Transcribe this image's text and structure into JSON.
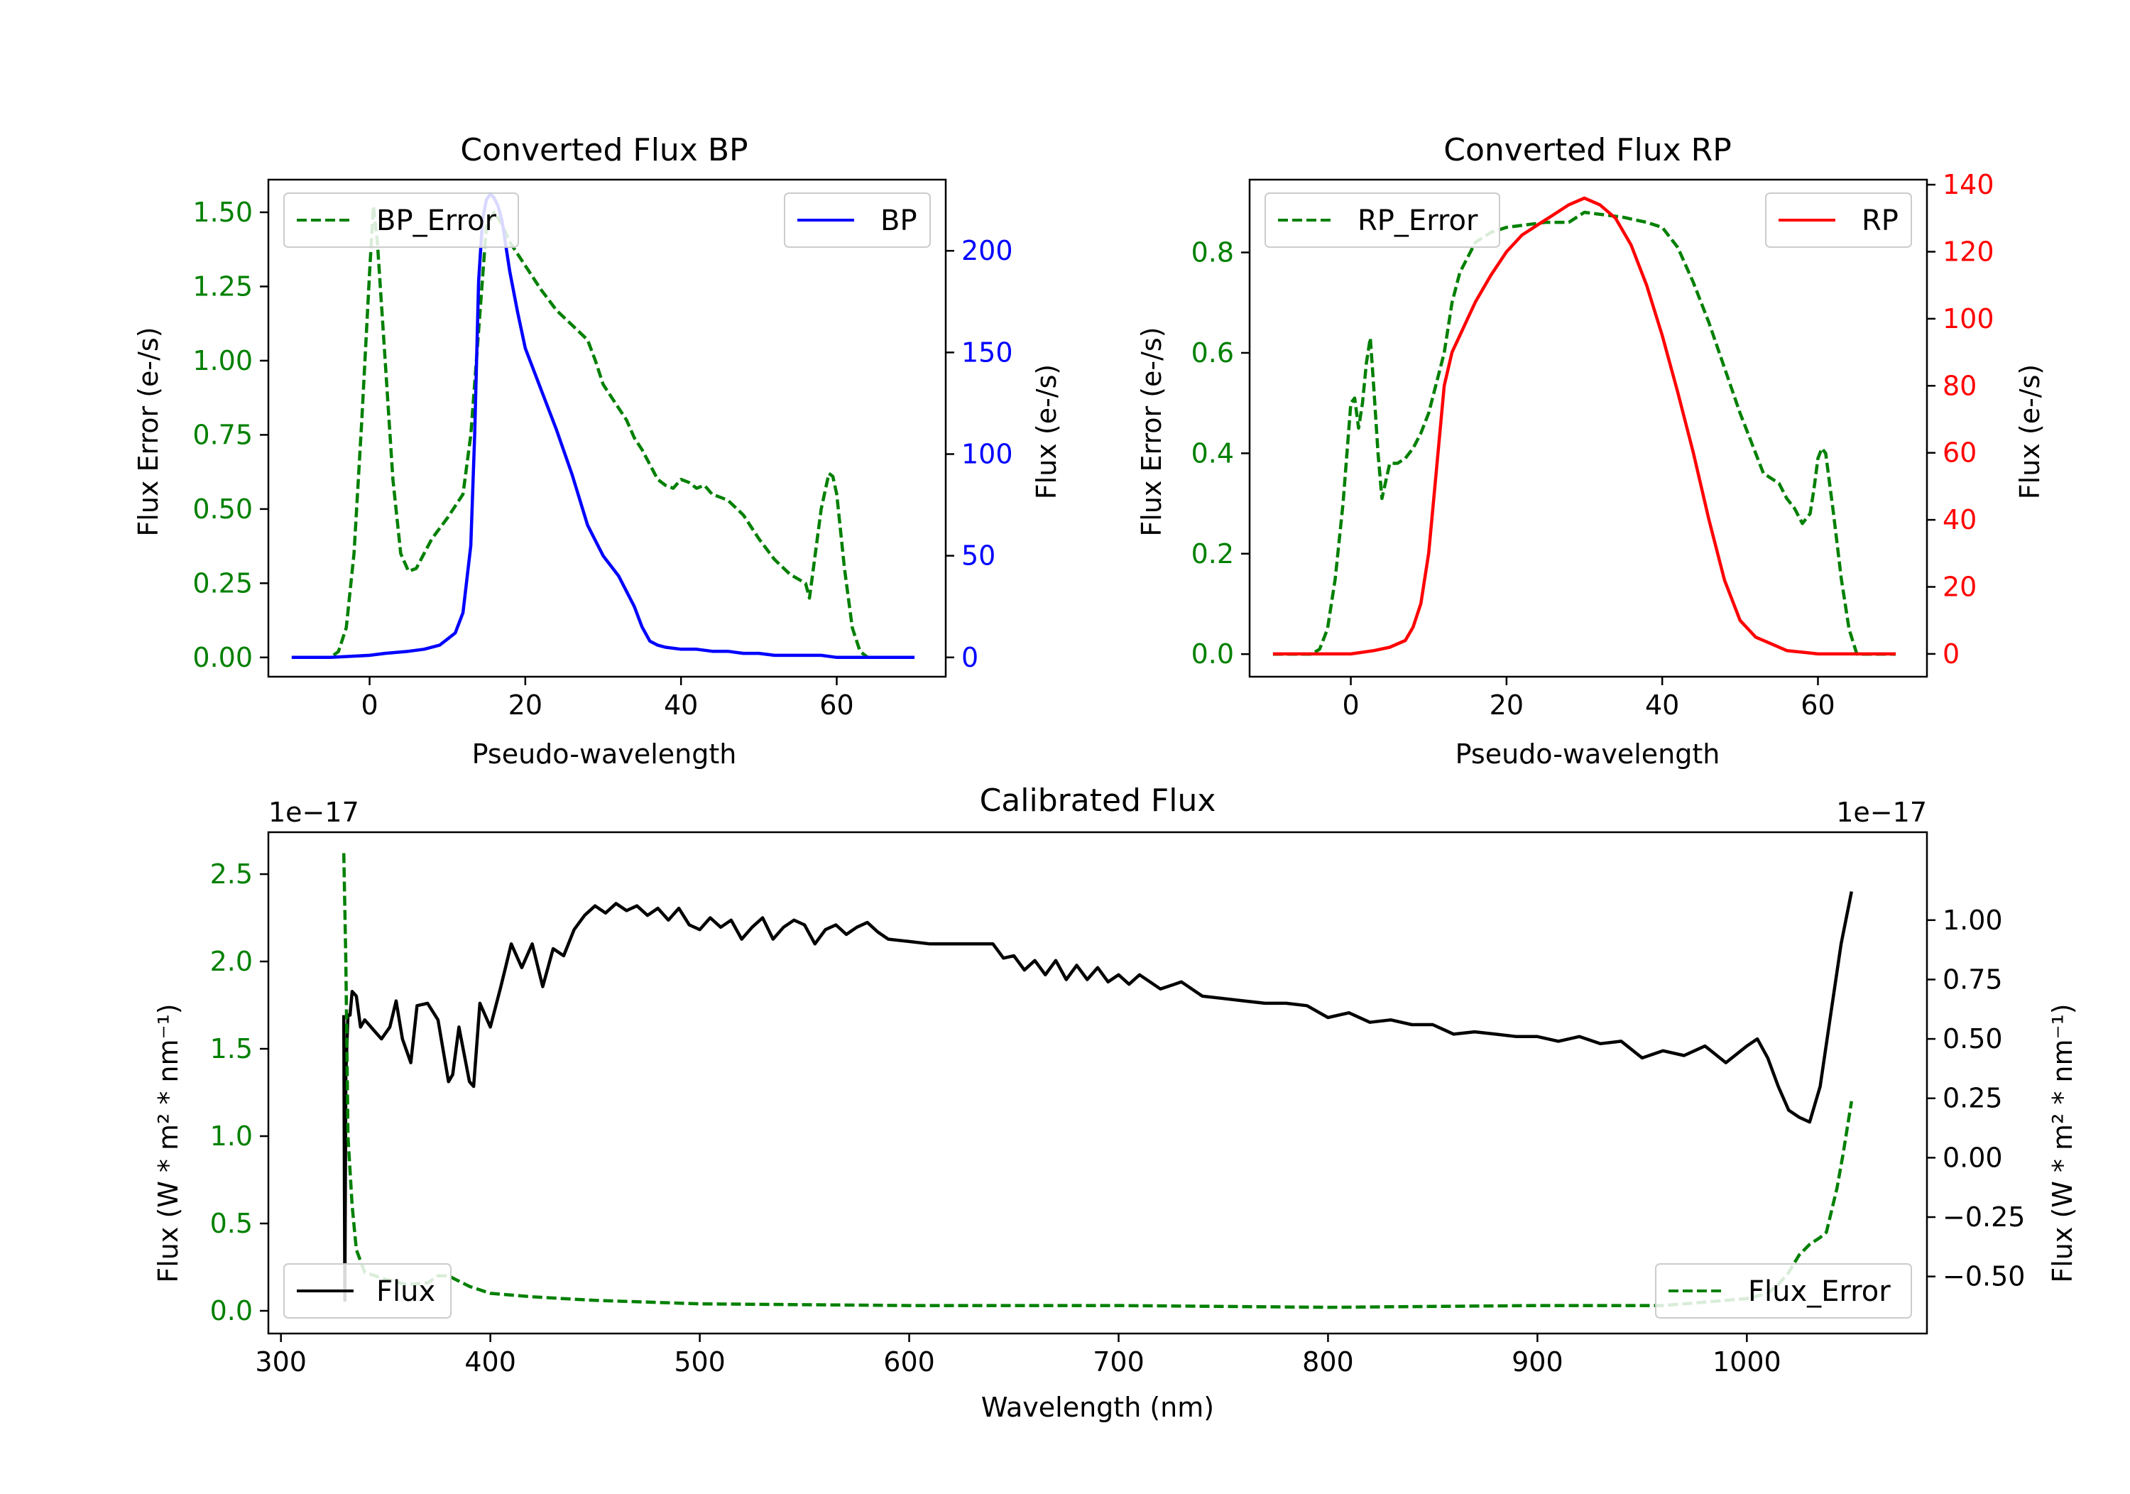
{
  "figure": {
    "background": "#ffffff"
  },
  "chart_data": [
    {
      "type": "line",
      "title": "Converted Flux BP",
      "xlabel": "Pseudo-wavelength",
      "xlim": [
        -13,
        74
      ],
      "x_ticks": [
        0,
        20,
        40,
        60
      ],
      "left_axis": {
        "label": "Flux Error (e-/s)",
        "color": "#008000",
        "ylim": [
          -0.065,
          1.61
        ],
        "ticks": [
          0.0,
          0.25,
          0.5,
          0.75,
          1.0,
          1.25,
          1.5
        ],
        "tick_labels": [
          "0.00",
          "0.25",
          "0.50",
          "0.75",
          "1.00",
          "1.25",
          "1.50"
        ]
      },
      "right_axis": {
        "label": "Flux (e-/s)",
        "color": "#0000ff",
        "ylim": [
          -9.5,
          235
        ],
        "ticks": [
          0,
          50,
          100,
          150,
          200
        ],
        "tick_labels": [
          "0",
          "50",
          "100",
          "150",
          "200"
        ]
      },
      "series": [
        {
          "name": "BP_Error",
          "axis": "left",
          "color": "#008000",
          "style": "dashed",
          "x": [
            -10,
            -5,
            -4,
            -3,
            -2,
            -1,
            0,
            0.5,
            1,
            2,
            3,
            4,
            5,
            6,
            7,
            8,
            10,
            12,
            13,
            14,
            15,
            16,
            17,
            18,
            20,
            22,
            24,
            26,
            28,
            29,
            30,
            32,
            33,
            34,
            35,
            36,
            37,
            38,
            39,
            40,
            41,
            42,
            43,
            44,
            46,
            48,
            50,
            52,
            54,
            56,
            56.5,
            57,
            58,
            59,
            59.5,
            60,
            61,
            62,
            63,
            64,
            65,
            66,
            70
          ],
          "values": [
            0.0,
            0.0,
            0.02,
            0.1,
            0.35,
            0.8,
            1.3,
            1.52,
            1.4,
            1.0,
            0.6,
            0.35,
            0.29,
            0.3,
            0.35,
            0.4,
            0.47,
            0.55,
            0.75,
            1.1,
            1.45,
            1.5,
            1.46,
            1.4,
            1.32,
            1.24,
            1.17,
            1.12,
            1.07,
            1.0,
            0.92,
            0.84,
            0.8,
            0.74,
            0.7,
            0.65,
            0.6,
            0.58,
            0.57,
            0.6,
            0.59,
            0.57,
            0.58,
            0.55,
            0.53,
            0.48,
            0.4,
            0.33,
            0.28,
            0.25,
            0.2,
            0.3,
            0.5,
            0.62,
            0.61,
            0.55,
            0.3,
            0.1,
            0.02,
            0.0,
            0.0,
            0.0,
            0.0
          ]
        },
        {
          "name": "BP",
          "axis": "right",
          "color": "#0000ff",
          "style": "solid",
          "x": [
            -10,
            -5,
            0,
            2,
            5,
            7,
            9,
            11,
            12,
            13,
            13.5,
            14,
            14.5,
            15,
            15.5,
            16,
            16.5,
            17,
            18,
            19,
            20,
            22,
            24,
            26,
            28,
            30,
            32,
            34,
            35,
            36,
            37,
            38,
            40,
            42,
            44,
            46,
            48,
            50,
            52,
            54,
            56,
            58,
            60,
            62,
            65,
            70
          ],
          "values": [
            0,
            0,
            1,
            2,
            3,
            4,
            6,
            12,
            22,
            55,
            110,
            185,
            215,
            225,
            228,
            226,
            222,
            215,
            190,
            170,
            152,
            132,
            112,
            90,
            65,
            50,
            40,
            25,
            15,
            8,
            6,
            5,
            4,
            4,
            3,
            3,
            2,
            2,
            1,
            1,
            1,
            1,
            0,
            0,
            0,
            0
          ]
        }
      ],
      "legend": [
        {
          "label": "BP_Error",
          "placement": "upper-left"
        },
        {
          "label": "BP",
          "placement": "upper-right"
        }
      ]
    },
    {
      "type": "line",
      "title": "Converted Flux RP",
      "xlabel": "Pseudo-wavelength",
      "xlim": [
        -13,
        74
      ],
      "x_ticks": [
        0,
        20,
        40,
        60
      ],
      "left_axis": {
        "label": "Flux Error (e-/s)",
        "color": "#008000",
        "ylim": [
          -0.045,
          0.945
        ],
        "ticks": [
          0.0,
          0.2,
          0.4,
          0.6,
          0.8
        ],
        "tick_labels": [
          "0.0",
          "0.2",
          "0.4",
          "0.6",
          "0.8"
        ]
      },
      "right_axis": {
        "label": "Flux (e-/s)",
        "color": "#ff0000",
        "ylim": [
          -6.8,
          141.5
        ],
        "ticks": [
          0,
          20,
          40,
          60,
          80,
          100,
          120,
          140
        ],
        "tick_labels": [
          "0",
          "20",
          "40",
          "60",
          "80",
          "100",
          "120",
          "140"
        ]
      },
      "series": [
        {
          "name": "RP_Error",
          "axis": "left",
          "color": "#008000",
          "style": "dashed",
          "x": [
            -10,
            -5,
            -4,
            -3,
            -2,
            -1,
            0,
            0.5,
            1,
            1.5,
            2,
            2.5,
            3,
            3.5,
            4,
            5,
            6,
            7,
            8,
            9,
            10,
            12,
            13,
            14,
            16,
            18,
            20,
            25,
            28,
            30,
            35,
            38,
            40,
            42,
            44,
            46,
            48,
            50,
            52,
            53,
            54,
            55,
            56,
            57,
            58,
            59,
            59.5,
            60,
            60.5,
            61,
            62,
            63,
            64,
            65,
            70
          ],
          "values": [
            0.0,
            0.0,
            0.01,
            0.05,
            0.15,
            0.3,
            0.5,
            0.51,
            0.45,
            0.5,
            0.58,
            0.63,
            0.52,
            0.4,
            0.31,
            0.38,
            0.38,
            0.39,
            0.41,
            0.44,
            0.48,
            0.6,
            0.7,
            0.76,
            0.82,
            0.84,
            0.85,
            0.86,
            0.86,
            0.88,
            0.87,
            0.86,
            0.85,
            0.81,
            0.74,
            0.66,
            0.57,
            0.48,
            0.4,
            0.36,
            0.35,
            0.34,
            0.31,
            0.29,
            0.26,
            0.28,
            0.33,
            0.39,
            0.41,
            0.4,
            0.28,
            0.15,
            0.05,
            0.0,
            0.0
          ]
        },
        {
          "name": "RP",
          "axis": "right",
          "color": "#ff0000",
          "style": "solid",
          "x": [
            -10,
            -5,
            0,
            3,
            5,
            7,
            8,
            9,
            10,
            11,
            12,
            13,
            14,
            15,
            16,
            18,
            20,
            22,
            24,
            26,
            28,
            30,
            32,
            34,
            36,
            38,
            40,
            42,
            44,
            46,
            48,
            50,
            52,
            54,
            56,
            58,
            60,
            62,
            65,
            70
          ],
          "values": [
            0,
            0,
            0,
            1,
            2,
            4,
            8,
            15,
            30,
            55,
            80,
            90,
            95,
            100,
            105,
            113,
            120,
            125,
            128,
            131,
            134,
            136,
            134,
            130,
            122,
            110,
            95,
            78,
            60,
            40,
            22,
            10,
            5,
            3,
            1,
            0.5,
            0,
            0,
            0,
            0
          ]
        }
      ],
      "legend": [
        {
          "label": "RP_Error",
          "placement": "upper-left"
        },
        {
          "label": "RP",
          "placement": "upper-right"
        }
      ]
    },
    {
      "type": "line",
      "title": "Calibrated Flux",
      "xlabel": "Wavelength (nm)",
      "xlim": [
        294,
        1086
      ],
      "x_ticks": [
        300,
        400,
        500,
        600,
        700,
        800,
        900,
        1000
      ],
      "left_axis": {
        "label": "Flux (W * m² * nm⁻¹)",
        "color": "#008000",
        "offset_text": "1e−17",
        "ylim": [
          -0.13,
          2.74
        ],
        "ticks": [
          0.0,
          0.5,
          1.0,
          1.5,
          2.0,
          2.5
        ],
        "tick_labels": [
          "0.0",
          "0.5",
          "1.0",
          "1.5",
          "2.0",
          "2.5"
        ]
      },
      "right_axis": {
        "label": "Flux (W * m² * nm⁻¹)",
        "color": "#000000",
        "offset_text": "1e−17",
        "ylim": [
          -0.74,
          1.37
        ],
        "ticks": [
          -0.5,
          -0.25,
          0.0,
          0.25,
          0.5,
          0.75,
          1.0
        ],
        "tick_labels": [
          "−0.50",
          "−0.25",
          "0.00",
          "0.25",
          "0.50",
          "0.75",
          "1.00"
        ]
      },
      "series": [
        {
          "name": "Flux",
          "axis": "right",
          "color": "#000000",
          "style": "solid",
          "x": [
            330,
            330.5,
            331,
            332,
            333,
            334,
            336,
            338,
            340,
            342,
            345,
            348,
            352,
            355,
            358,
            362,
            365,
            370,
            375,
            380,
            382,
            385,
            390,
            392,
            395,
            400,
            405,
            410,
            415,
            420,
            425,
            430,
            435,
            440,
            445,
            450,
            455,
            460,
            465,
            470,
            475,
            480,
            485,
            490,
            495,
            500,
            505,
            510,
            515,
            520,
            525,
            530,
            535,
            540,
            545,
            550,
            555,
            560,
            565,
            570,
            575,
            580,
            585,
            590,
            600,
            610,
            620,
            630,
            640,
            645,
            650,
            655,
            660,
            665,
            670,
            675,
            680,
            685,
            690,
            695,
            700,
            705,
            710,
            720,
            730,
            740,
            750,
            760,
            770,
            780,
            790,
            800,
            810,
            820,
            830,
            840,
            850,
            860,
            870,
            880,
            890,
            900,
            910,
            920,
            930,
            940,
            950,
            960,
            970,
            980,
            990,
            1000,
            1005,
            1010,
            1015,
            1020,
            1025,
            1030,
            1035,
            1040,
            1045,
            1050
          ],
          "values": [
            0.6,
            -0.6,
            0.35,
            0.6,
            0.6,
            0.7,
            0.68,
            0.55,
            0.58,
            0.56,
            0.53,
            0.5,
            0.55,
            0.66,
            0.5,
            0.4,
            0.64,
            0.65,
            0.58,
            0.32,
            0.35,
            0.55,
            0.32,
            0.3,
            0.65,
            0.55,
            0.72,
            0.9,
            0.8,
            0.9,
            0.72,
            0.88,
            0.85,
            0.96,
            1.02,
            1.06,
            1.03,
            1.07,
            1.04,
            1.06,
            1.02,
            1.05,
            1.0,
            1.05,
            0.98,
            0.96,
            1.01,
            0.97,
            1.0,
            0.92,
            0.97,
            1.01,
            0.92,
            0.97,
            1.0,
            0.98,
            0.9,
            0.96,
            0.98,
            0.94,
            0.97,
            0.99,
            0.95,
            0.92,
            0.91,
            0.9,
            0.9,
            0.9,
            0.9,
            0.84,
            0.85,
            0.79,
            0.83,
            0.77,
            0.83,
            0.75,
            0.81,
            0.75,
            0.8,
            0.74,
            0.77,
            0.73,
            0.77,
            0.71,
            0.74,
            0.68,
            0.67,
            0.66,
            0.65,
            0.65,
            0.64,
            0.59,
            0.61,
            0.57,
            0.58,
            0.56,
            0.56,
            0.52,
            0.53,
            0.52,
            0.51,
            0.51,
            0.49,
            0.51,
            0.48,
            0.49,
            0.42,
            0.45,
            0.43,
            0.47,
            0.4,
            0.47,
            0.5,
            0.42,
            0.3,
            0.2,
            0.17,
            0.15,
            0.3,
            0.6,
            0.9,
            1.12
          ]
        },
        {
          "name": "Flux_Error",
          "axis": "left",
          "color": "#008000",
          "style": "dashed",
          "x": [
            330,
            331,
            332,
            334,
            336,
            340,
            345,
            350,
            360,
            370,
            375,
            380,
            385,
            390,
            400,
            420,
            450,
            500,
            600,
            700,
            800,
            900,
            960,
            980,
            1000,
            1010,
            1015,
            1020,
            1025,
            1030,
            1035,
            1038,
            1040,
            1043,
            1046,
            1050
          ],
          "values": [
            2.62,
            2.0,
            1.0,
            0.6,
            0.35,
            0.22,
            0.2,
            0.18,
            0.15,
            0.16,
            0.2,
            0.2,
            0.17,
            0.14,
            0.1,
            0.08,
            0.06,
            0.04,
            0.03,
            0.03,
            0.02,
            0.03,
            0.03,
            0.05,
            0.07,
            0.1,
            0.15,
            0.22,
            0.32,
            0.38,
            0.42,
            0.45,
            0.55,
            0.7,
            0.9,
            1.2
          ]
        }
      ],
      "legend": [
        {
          "label": "Flux",
          "placement": "lower-left"
        },
        {
          "label": "Flux_Error",
          "placement": "lower-right"
        }
      ]
    }
  ]
}
